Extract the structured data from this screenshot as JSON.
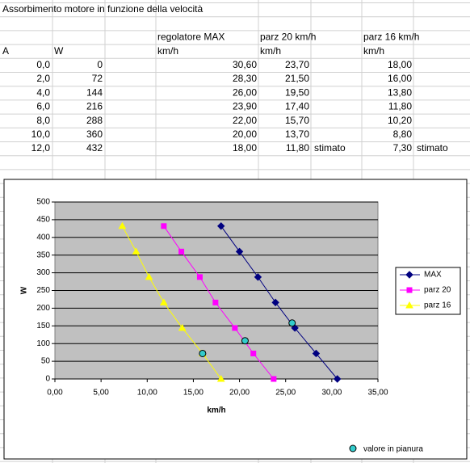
{
  "table": {
    "title": "Assorbimento motore in funzione della velocità",
    "header_row": [
      "regolatore MAX",
      "parz 20 km/h",
      "parz 16 km/h"
    ],
    "unit_row": [
      "A",
      "W",
      "km/h",
      "km/h",
      "km/h"
    ],
    "rows": [
      [
        "0,0",
        "0",
        "30,60",
        "23,70",
        "18,00"
      ],
      [
        "2,0",
        "72",
        "28,30",
        "21,50",
        "16,00"
      ],
      [
        "4,0",
        "144",
        "26,00",
        "19,50",
        "13,80"
      ],
      [
        "6,0",
        "216",
        "23,90",
        "17,40",
        "11,80"
      ],
      [
        "8,0",
        "288",
        "22,00",
        "15,70",
        "10,20"
      ],
      [
        "10,0",
        "360",
        "20,00",
        "13,70",
        "8,80"
      ],
      [
        "12,0",
        "432",
        "18,00",
        "11,80",
        "7,30"
      ]
    ],
    "last_row_notes": [
      "stimato",
      "stimato"
    ]
  },
  "chart_data": {
    "type": "scatter",
    "x_label": "km/h",
    "y_label": "W",
    "xlim": [
      0,
      35
    ],
    "ylim": [
      0,
      500
    ],
    "xticks": [
      {
        "value": 0,
        "label": "0,00"
      },
      {
        "value": 5,
        "label": "5,00"
      },
      {
        "value": 10,
        "label": "10,00"
      },
      {
        "value": 15,
        "label": "15,00"
      },
      {
        "value": 20,
        "label": "20,00"
      },
      {
        "value": 25,
        "label": "25,00"
      },
      {
        "value": 30,
        "label": "30,00"
      },
      {
        "value": 35,
        "label": "35,00"
      }
    ],
    "yticks": [
      0,
      50,
      100,
      150,
      200,
      250,
      300,
      350,
      400,
      450,
      500
    ],
    "grid": true,
    "plot_color": "#c0c0c0",
    "series": [
      {
        "name": "MAX",
        "color": "#000080",
        "marker": "diamond",
        "line": true,
        "x": [
          30.6,
          28.3,
          26,
          23.9,
          22,
          20,
          18
        ],
        "values": [
          0,
          72,
          144,
          216,
          288,
          360,
          432
        ]
      },
      {
        "name": "parz 20",
        "color": "#ff00ff",
        "marker": "square",
        "line": true,
        "x": [
          23.7,
          21.5,
          19.5,
          17.4,
          15.7,
          13.7,
          11.8
        ],
        "values": [
          0,
          72,
          144,
          216,
          288,
          360,
          432
        ]
      },
      {
        "name": "parz 16",
        "color": "#ffff00",
        "marker": "triangle",
        "line": true,
        "x": [
          18,
          16,
          13.8,
          11.8,
          10.2,
          8.8,
          7.3
        ],
        "values": [
          0,
          72,
          144,
          216,
          288,
          360,
          432
        ]
      },
      {
        "name": "valore in pianura",
        "color": "#33cccc",
        "marker": "circle",
        "line": false,
        "x": [
          16,
          20.6,
          25.7
        ],
        "values": [
          72,
          108,
          158
        ]
      }
    ]
  }
}
